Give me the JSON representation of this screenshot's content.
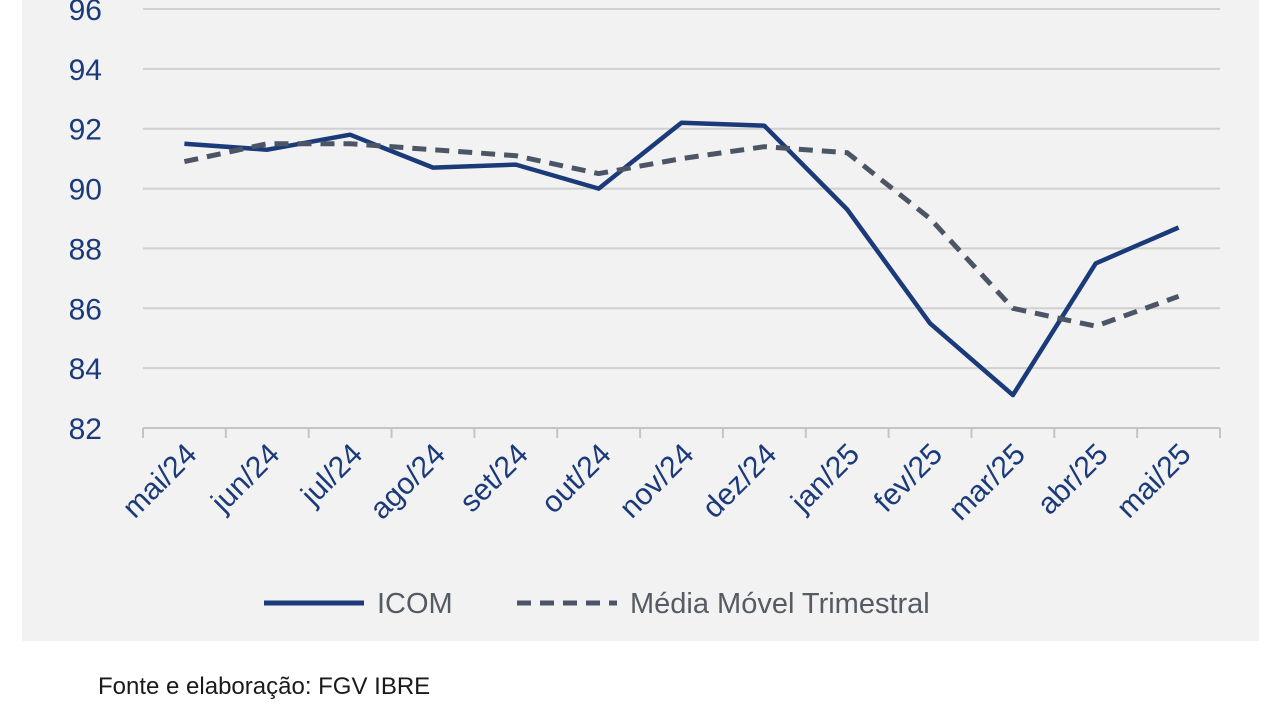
{
  "chart_data": {
    "type": "line",
    "title": "",
    "xlabel": "",
    "ylabel": "",
    "ylim": [
      82,
      96
    ],
    "yticks": [
      82,
      84,
      86,
      88,
      90,
      92,
      94,
      96
    ],
    "grid": true,
    "categories": [
      "mai/24",
      "jun/24",
      "jul/24",
      "ago/24",
      "set/24",
      "out/24",
      "nov/24",
      "dez/24",
      "jan/25",
      "fev/25",
      "mar/25",
      "abr/25",
      "mai/25"
    ],
    "series": [
      {
        "name": "ICOM",
        "style": "solid",
        "color": "#1b3a7a",
        "values": [
          91.5,
          91.3,
          91.8,
          90.7,
          90.8,
          90.0,
          92.2,
          92.1,
          89.3,
          85.5,
          83.1,
          87.5,
          88.7
        ]
      },
      {
        "name": "Média Móvel Trimestral",
        "style": "dashed",
        "color": "#4b5566",
        "values": [
          90.9,
          91.5,
          91.5,
          91.3,
          91.1,
          90.5,
          91.0,
          91.4,
          91.2,
          89.0,
          86.0,
          85.4,
          86.4
        ]
      }
    ],
    "legend_position": "bottom"
  },
  "source_text": "Fonte e elaboração: FGV IBRE"
}
